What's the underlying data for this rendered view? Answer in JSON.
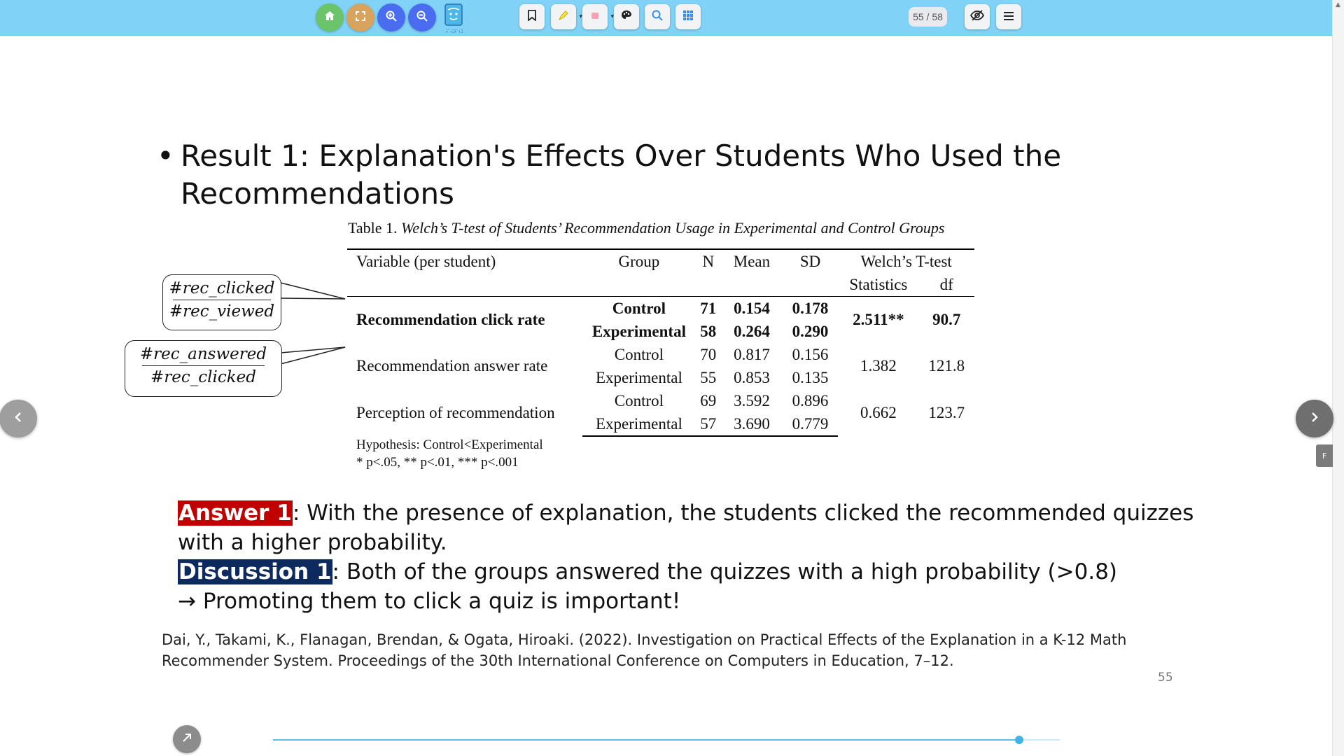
{
  "toolbar": {
    "colors": {
      "bar": "#80d3f7",
      "home": "#6cc46a",
      "fullscreen": "#d8a35d",
      "zoom": "#4a6cf0"
    },
    "app_logo_text": "ﾃﾞｨｺﾃﾞｨｺ",
    "page_indicator": "55 / 58"
  },
  "slide": {
    "title_bullet": "•",
    "title": "Result 1: Explanation's Effects Over Students Who Used the Recommendations",
    "table": {
      "caption_prefix": "Table 1.",
      "caption_italic": "Welch’s T-test of Students’ Recommendation Usage in Experimental and Control Groups",
      "headers": {
        "variable": "Variable (per student)",
        "group": "Group",
        "n": "N",
        "mean": "Mean",
        "sd": "SD",
        "welch": "Welch’s T-test",
        "statistics": "Statistics",
        "df": "df"
      },
      "rows": [
        {
          "variable": "Recommendation click rate",
          "bold": true,
          "groups": [
            {
              "group": "Control",
              "n": "71",
              "mean": "0.154",
              "sd": "0.178"
            },
            {
              "group": "Experimental",
              "n": "58",
              "mean": "0.264",
              "sd": "0.290"
            }
          ],
          "statistics": "2.511**",
          "df": "90.7"
        },
        {
          "variable": "Recommendation answer rate",
          "bold": false,
          "groups": [
            {
              "group": "Control",
              "n": "70",
              "mean": "0.817",
              "sd": "0.156"
            },
            {
              "group": "Experimental",
              "n": "55",
              "mean": "0.853",
              "sd": "0.135"
            }
          ],
          "statistics": "1.382",
          "df": "121.8"
        },
        {
          "variable": "Perception of recommendation",
          "bold": false,
          "groups": [
            {
              "group": "Control",
              "n": "69",
              "mean": "3.592",
              "sd": "0.896"
            },
            {
              "group": "Experimental",
              "n": "57",
              "mean": "3.690",
              "sd": "0.779"
            }
          ],
          "statistics": "0.662",
          "df": "123.7"
        }
      ],
      "note_hypothesis": "Hypothesis: Control<Experimental",
      "note_significance": "* p<.05, ** p<.01, *** p<.001"
    },
    "callouts": {
      "click_rate": {
        "numerator": "#rec_clicked",
        "denominator": "#rec_viewed"
      },
      "answer_rate": {
        "numerator": "#rec_answered",
        "denominator": "#rec_clicked"
      }
    },
    "answer": {
      "tag": "Answer 1",
      "text": ": With the presence of explanation, the students clicked the recommended quizzes with a higher probability.",
      "tag_color": "#c00000"
    },
    "discussion": {
      "tag": "Discussion 1",
      "text": ": Both of the groups answered the quizzes with a high probability (>0.8)",
      "tag_color": "#0d2a5e"
    },
    "conclusion": "→ Promoting them to click a quiz is important!",
    "reference": "Dai, Y., Takami, K., Flanagan, Brendan, & Ogata, Hiroaki. (2022). Investigation on Practical Effects of the Explanation in a K-12 Math Recommender System. Proceedings of the 30th International Conference on Computers in Education, 7–12.",
    "slide_number": "55"
  },
  "viewer": {
    "side_tab_label": "F",
    "progress_fraction": 0.948
  }
}
